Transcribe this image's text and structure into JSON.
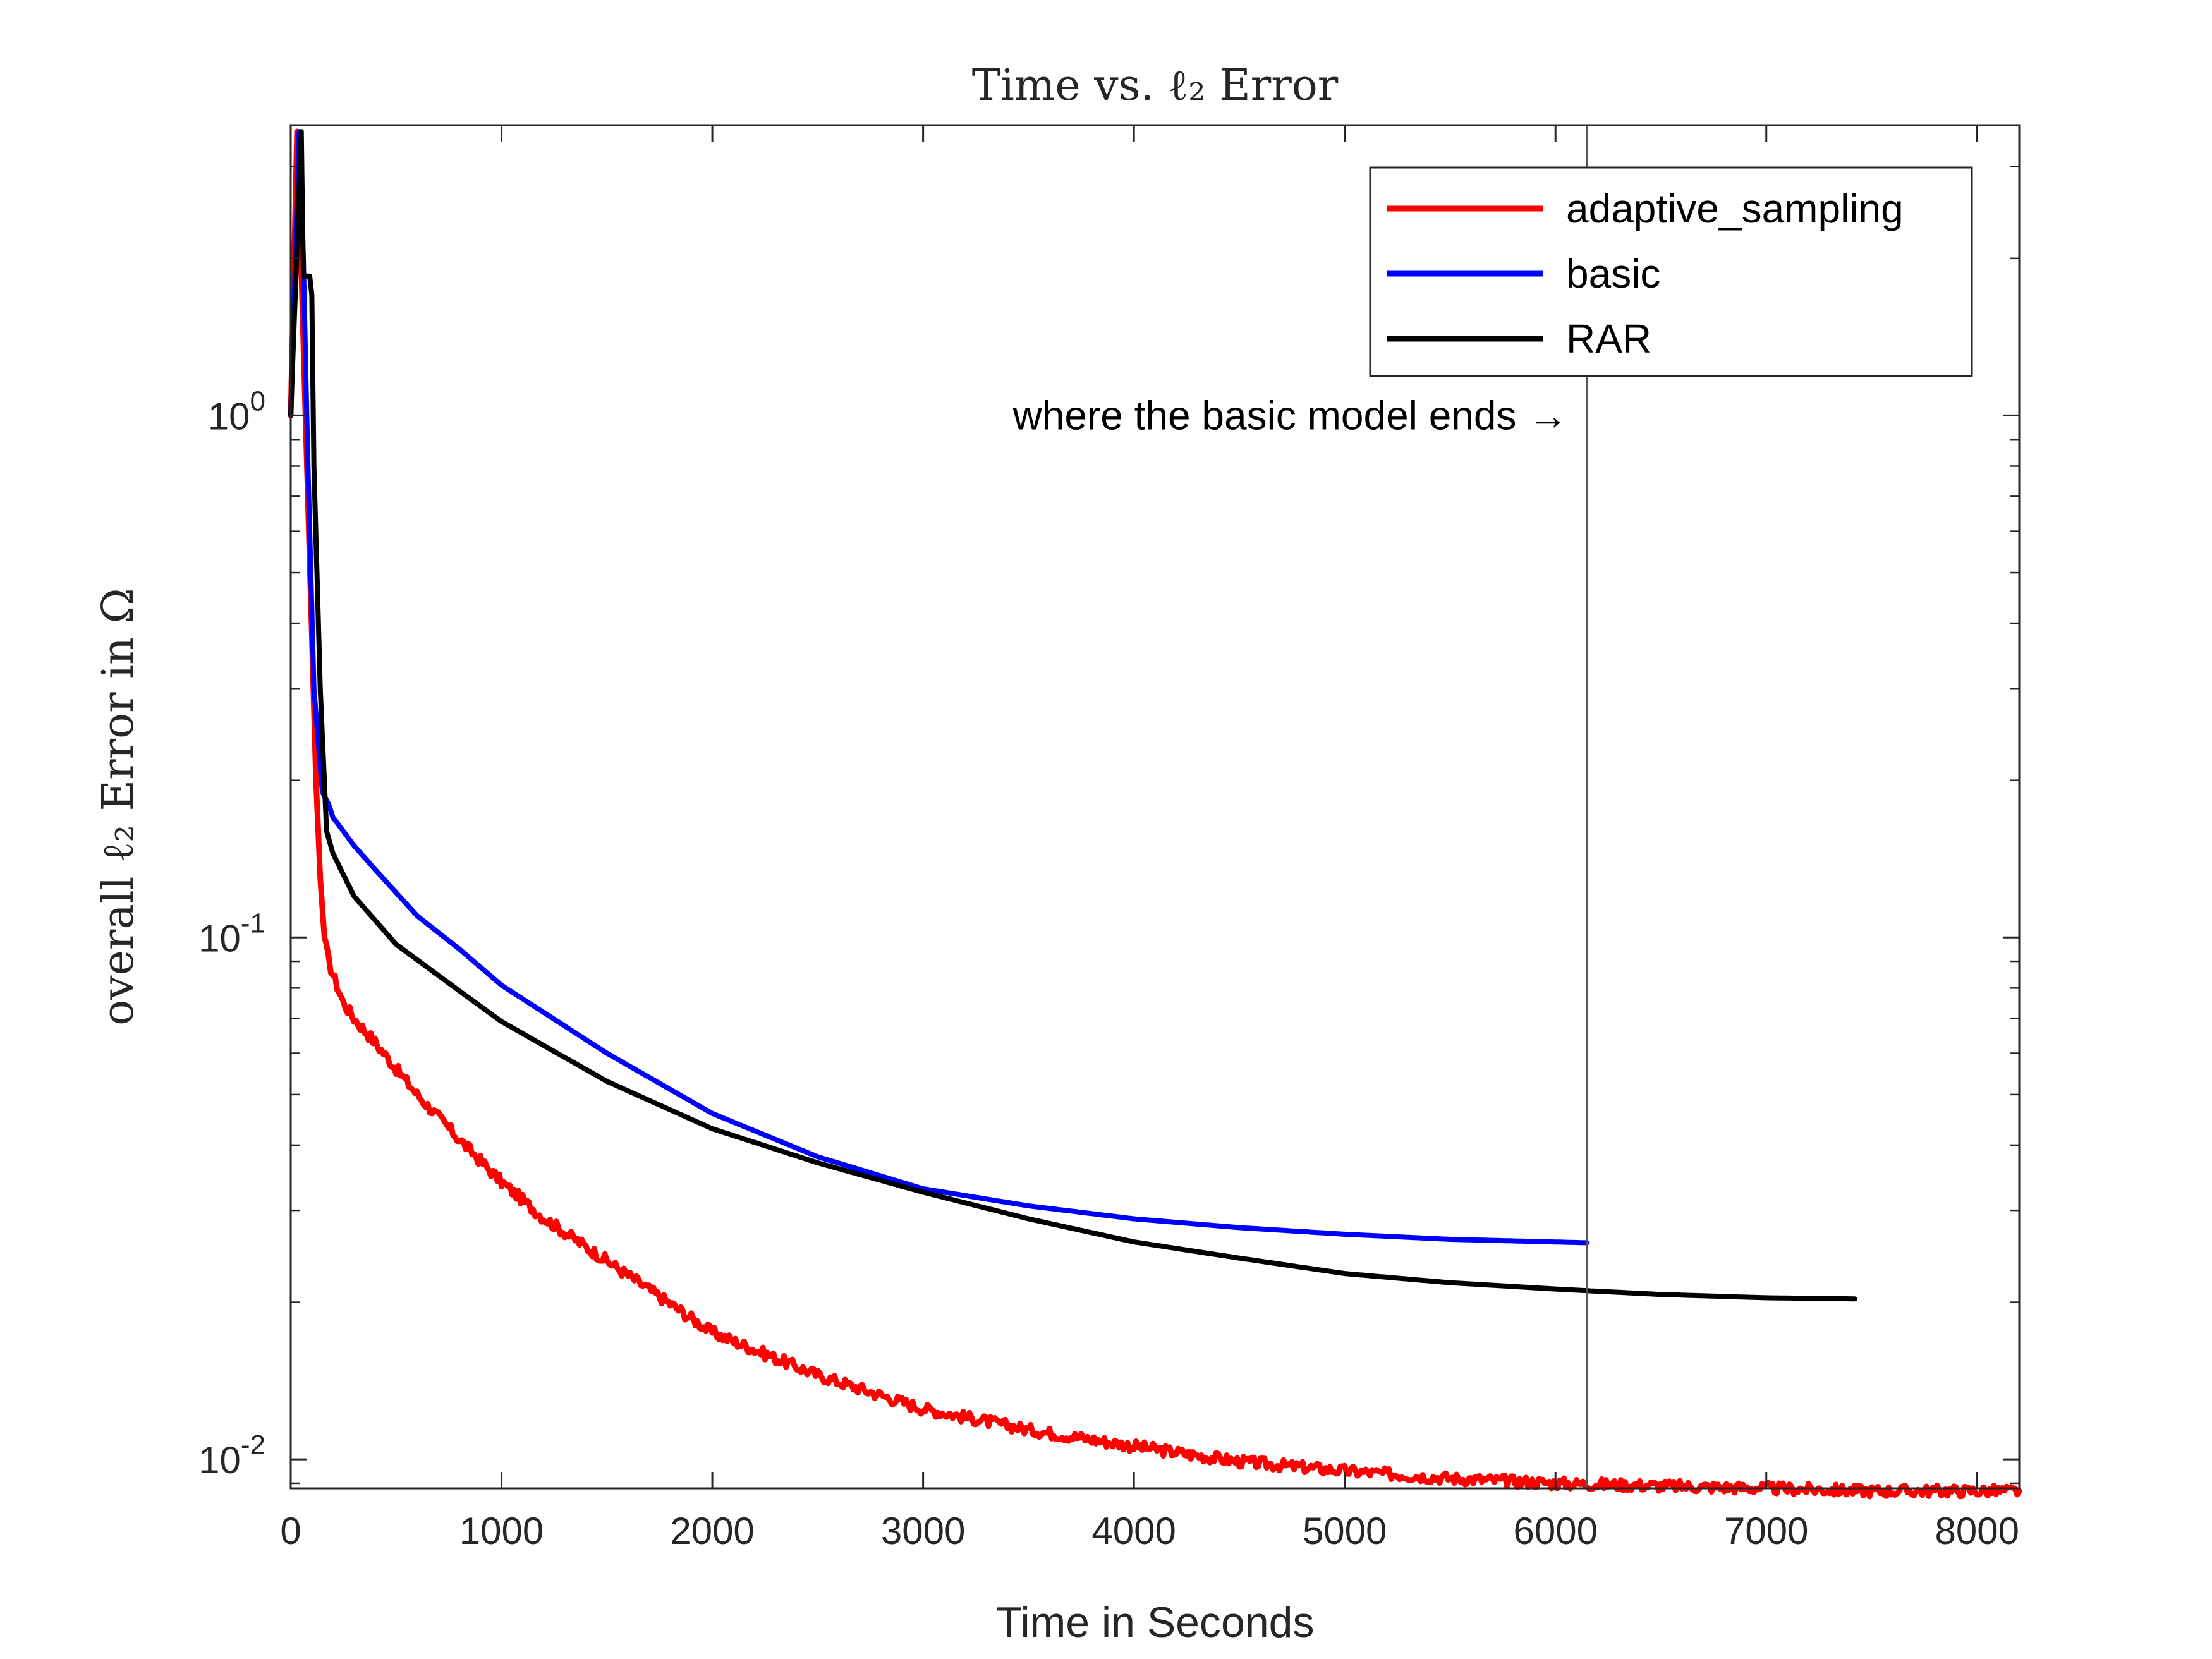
{
  "chart_data": {
    "type": "line",
    "title": "Time vs. ℓ₂ Error",
    "xlabel": "Time in Seconds",
    "ylabel": "overall ℓ₂ Error in Ω",
    "xlim": [
      0,
      8200
    ],
    "ylim": [
      0.0088,
      3.6
    ],
    "yscale": "log",
    "xticks": [
      0,
      1000,
      2000,
      3000,
      4000,
      5000,
      6000,
      7000,
      8000
    ],
    "xtick_labels": [
      "0",
      "1000",
      "2000",
      "3000",
      "4000",
      "5000",
      "6000",
      "7000",
      "8000"
    ],
    "yticks": [
      0.01,
      0.1,
      1
    ],
    "ytick_labels": [
      {
        "base": "10",
        "exp": "-2"
      },
      {
        "base": "10",
        "exp": "-1"
      },
      {
        "base": "10",
        "exp": "0"
      }
    ],
    "grid": false,
    "legend_position": "top-right",
    "series": [
      {
        "name": "adaptive_sampling",
        "color": "#ff0000",
        "noisy": true,
        "x": [
          0,
          30,
          50,
          75,
          100,
          120,
          140,
          160,
          180,
          200,
          250,
          300,
          400,
          500,
          600,
          800,
          1000,
          1200,
          1500,
          2000,
          2500,
          3000,
          3500,
          4000,
          4500,
          5000,
          5500,
          6000,
          6500,
          7000,
          7500,
          8200
        ],
        "y": [
          1.0,
          3.5,
          1.9,
          0.85,
          0.38,
          0.2,
          0.13,
          0.1,
          0.09,
          0.085,
          0.075,
          0.07,
          0.063,
          0.056,
          0.05,
          0.041,
          0.034,
          0.029,
          0.024,
          0.0175,
          0.0145,
          0.0125,
          0.0114,
          0.0106,
          0.0099,
          0.0095,
          0.0092,
          0.009,
          0.0089,
          0.0088,
          0.0087,
          0.0087
        ]
      },
      {
        "name": "basic",
        "color": "#0000ff",
        "noisy": false,
        "x": [
          0,
          40,
          60,
          80,
          110,
          150,
          180,
          200,
          300,
          400,
          600,
          800,
          1000,
          1500,
          2000,
          2500,
          3000,
          3500,
          4000,
          4500,
          5000,
          5500,
          6150
        ],
        "y": [
          1.0,
          3.5,
          2.0,
          0.85,
          0.3,
          0.19,
          0.18,
          0.17,
          0.15,
          0.135,
          0.11,
          0.095,
          0.081,
          0.06,
          0.046,
          0.038,
          0.033,
          0.0306,
          0.0289,
          0.0278,
          0.027,
          0.0264,
          0.026
        ]
      },
      {
        "name": "RAR",
        "color": "#000000",
        "noisy": false,
        "x": [
          0,
          50,
          60,
          90,
          100,
          110,
          140,
          170,
          200,
          300,
          500,
          800,
          1000,
          1500,
          2000,
          2500,
          3000,
          3500,
          4000,
          4500,
          5000,
          5500,
          6000,
          6500,
          7000,
          7420
        ],
        "y": [
          1.0,
          3.5,
          1.85,
          1.85,
          1.7,
          0.8,
          0.3,
          0.16,
          0.145,
          0.12,
          0.097,
          0.079,
          0.069,
          0.053,
          0.043,
          0.037,
          0.0325,
          0.0289,
          0.0261,
          0.0243,
          0.0227,
          0.0218,
          0.0212,
          0.0207,
          0.0204,
          0.0203
        ]
      }
    ],
    "annotations": [
      {
        "text": "where the basic model ends →",
        "x_line": 6150,
        "y_text": 1.0
      }
    ]
  }
}
